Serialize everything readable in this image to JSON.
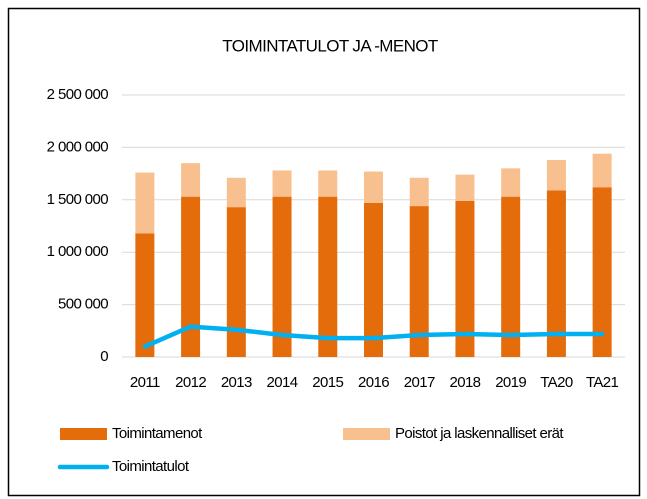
{
  "chart_data": {
    "type": "bar",
    "stacked": true,
    "title": "TOIMINTATULOT JA -MENOT",
    "categories": [
      "2011",
      "2012",
      "2013",
      "2014",
      "2015",
      "2016",
      "2017",
      "2018",
      "2019",
      "TA20",
      "TA21"
    ],
    "series": [
      {
        "name": "Toimintamenot",
        "type": "bar",
        "color": "#e46c0a",
        "values": [
          1180000,
          1530000,
          1430000,
          1530000,
          1530000,
          1470000,
          1440000,
          1490000,
          1530000,
          1590000,
          1620000
        ]
      },
      {
        "name": "Poistot ja laskennalliset erät",
        "type": "bar",
        "color": "#f9c08f",
        "values": [
          580000,
          320000,
          280000,
          250000,
          250000,
          300000,
          270000,
          250000,
          270000,
          290000,
          320000
        ]
      },
      {
        "name": "Toimintatulot",
        "type": "line",
        "color": "#00b0f0",
        "values": [
          100000,
          290000,
          260000,
          210000,
          180000,
          180000,
          210000,
          220000,
          210000,
          220000,
          220000
        ]
      }
    ],
    "ylim": [
      0,
      2500000
    ],
    "yticks": [
      0,
      {
        "value": 500000,
        "label": "500 000"
      },
      {
        "value": 1000000,
        "label": "1 000 000"
      },
      {
        "value": 1500000,
        "label": "1 500 000"
      },
      {
        "value": 2000000,
        "label": "2 000 000"
      },
      {
        "value": 2500000,
        "label": "2 500 000"
      }
    ],
    "grid": true,
    "legend": "bottom"
  }
}
